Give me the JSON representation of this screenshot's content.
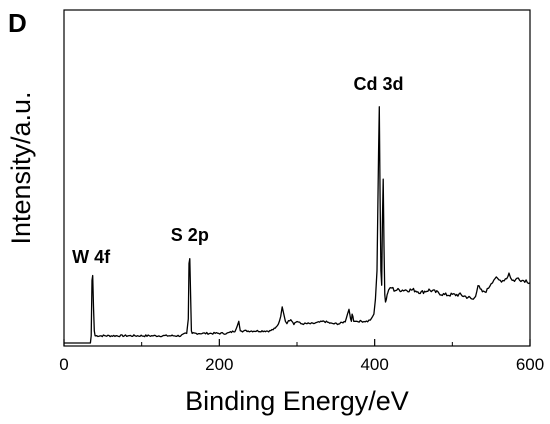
{
  "panel_label": "D",
  "chart_data": {
    "type": "line",
    "title": "",
    "xlabel": "Binding Energy/eV",
    "ylabel": "Intensity/a.u.",
    "xlim": [
      0,
      600
    ],
    "ylim": [
      0,
      100
    ],
    "x_ticks": [
      0,
      200,
      400,
      600
    ],
    "x_tick_labels": [
      "0",
      "200",
      "400",
      "600"
    ],
    "y_ticks_shown": false,
    "grid": false,
    "legend": "none",
    "line_color": "#000000",
    "annotations": [
      {
        "text": "W 4f",
        "x": 35
      },
      {
        "text": "S 2p",
        "x": 162
      },
      {
        "text": "Cd 3d",
        "x": 405
      }
    ],
    "series": [
      {
        "x": [
          0,
          34,
          35,
          36,
          37,
          38,
          39,
          40,
          41,
          45,
          55,
          70,
          90,
          110,
          130,
          150,
          158,
          160,
          161,
          162,
          163,
          164,
          165,
          166,
          170,
          190,
          210,
          220,
          223,
          225,
          226,
          227,
          228,
          230,
          240,
          255,
          265,
          272,
          276,
          279,
          281,
          283,
          285,
          287,
          289,
          292,
          296,
          300,
          305,
          310,
          320,
          335,
          345,
          355,
          362,
          365,
          367,
          369,
          370,
          371,
          372,
          373,
          375,
          377,
          383,
          391,
          396,
          399,
          401,
          403,
          405,
          406,
          407,
          408,
          409,
          410,
          411,
          412,
          413,
          414,
          415,
          416,
          417,
          418,
          420,
          422,
          425,
          430,
          440,
          450,
          460,
          470,
          480,
          490,
          500,
          510,
          520,
          527,
          530,
          533,
          536,
          540,
          545,
          550,
          555,
          560,
          565,
          570,
          573,
          575,
          577,
          580,
          585,
          590,
          595,
          600
        ],
        "y": [
          0,
          0,
          3,
          26,
          28,
          15,
          5,
          3,
          3,
          3,
          3,
          3,
          3,
          3,
          3,
          3,
          4,
          10,
          33,
          35,
          20,
          5,
          4,
          4,
          4,
          4,
          4,
          5,
          7,
          9,
          7,
          5,
          5,
          5,
          5,
          5,
          5,
          6,
          8,
          11,
          15,
          12,
          9,
          8,
          9,
          10,
          8,
          9,
          8,
          8,
          8,
          9,
          8,
          8,
          9,
          12,
          14,
          10,
          9,
          12,
          11,
          9,
          9,
          9,
          9,
          9,
          10,
          12,
          18,
          30,
          80,
          98,
          60,
          30,
          24,
          50,
          68,
          40,
          20,
          17,
          18,
          20,
          21,
          22,
          23,
          23,
          22,
          22,
          22,
          22,
          21,
          22,
          21,
          20,
          20,
          20,
          19,
          18,
          20,
          24,
          22,
          21,
          22,
          25,
          27,
          26,
          26,
          27,
          29,
          27,
          26,
          26,
          27,
          26,
          26,
          25
        ]
      }
    ]
  }
}
